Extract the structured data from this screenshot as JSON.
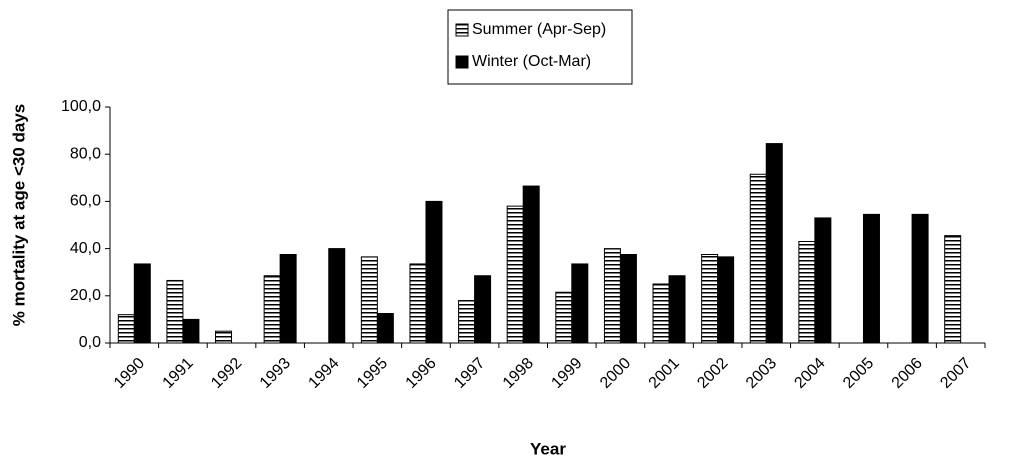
{
  "chart_data": {
    "type": "bar",
    "x_label": "Year",
    "y_label": "% mortality at age <30 days",
    "categories": [
      "1990",
      "1991",
      "1992",
      "1993",
      "1994",
      "1995",
      "1996",
      "1997",
      "1998",
      "1999",
      "2000",
      "2001",
      "2002",
      "2003",
      "2004",
      "2005",
      "2006",
      "2007"
    ],
    "series": [
      {
        "name": "Summer (Apr-Sep)",
        "color": "#ffffff",
        "hatch": "horizontal",
        "values": [
          12,
          26.5,
          5,
          28.5,
          null,
          36.5,
          33.5,
          18,
          58,
          21.5,
          40,
          25,
          37.5,
          71.5,
          43,
          null,
          null,
          45.5
        ]
      },
      {
        "name": "Winter (Oct-Mar)",
        "color": "#000000",
        "values": [
          33.5,
          10,
          null,
          37.5,
          40,
          12.5,
          60,
          28.5,
          66.5,
          33.5,
          37.5,
          28.5,
          36.5,
          84.5,
          53,
          54.5,
          54.5,
          null
        ]
      }
    ],
    "ylim": [
      0,
      100
    ],
    "yticks": [
      {
        "value": 0,
        "label": "0,0"
      },
      {
        "value": 20,
        "label": "20,0"
      },
      {
        "value": 40,
        "label": "40,0"
      },
      {
        "value": 60,
        "label": "60,0"
      },
      {
        "value": 80,
        "label": "80,0"
      },
      {
        "value": 100,
        "label": "100,0"
      }
    ],
    "grid": false,
    "legend": "top"
  }
}
